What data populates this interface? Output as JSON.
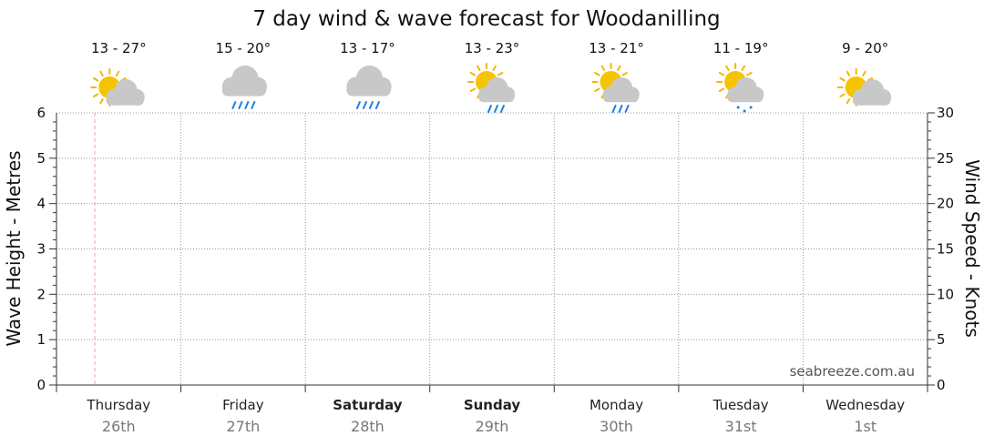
{
  "chart_data": {
    "type": "line",
    "title": "7 day wind & wave forecast for Woodanilling",
    "y_left": {
      "label": "Wave Height - Metres",
      "range": [
        0,
        6
      ],
      "ticks": [
        0,
        1,
        2,
        3,
        4,
        5,
        6
      ]
    },
    "y_right": {
      "label": "Wind Speed - Knots",
      "range": [
        0,
        30
      ],
      "ticks": [
        0,
        5,
        10,
        15,
        20,
        25,
        30
      ]
    },
    "grid": true,
    "series": [],
    "days": [
      {
        "day": "Thursday",
        "date": "26th",
        "temp": "13 - 27°",
        "icon": "partly-cloudy-icon",
        "bold": false
      },
      {
        "day": "Friday",
        "date": "27th",
        "temp": "15 - 20°",
        "icon": "rain-cloud-icon",
        "bold": false
      },
      {
        "day": "Saturday",
        "date": "28th",
        "temp": "13 - 17°",
        "icon": "rain-cloud-icon",
        "bold": true
      },
      {
        "day": "Sunday",
        "date": "29th",
        "temp": "13 - 23°",
        "icon": "sun-cloud-rain-icon",
        "bold": true
      },
      {
        "day": "Monday",
        "date": "30th",
        "temp": "13 - 21°",
        "icon": "sun-cloud-rain-icon",
        "bold": false
      },
      {
        "day": "Tuesday",
        "date": "31st",
        "temp": "11 - 19°",
        "icon": "sun-cloud-drizzle-icon",
        "bold": false
      },
      {
        "day": "Wednesday",
        "date": "1st",
        "temp": "9 - 20°",
        "icon": "partly-cloudy-icon",
        "bold": false
      }
    ],
    "watermark": "seabreeze.com.au",
    "colors": {
      "grid": "#999999",
      "now_line": "#f0a0a0",
      "sun": "#f5c400",
      "sun_rays": "#f7b500",
      "cloud": "#c8c8c8",
      "rain": "#1e7ee6"
    }
  }
}
